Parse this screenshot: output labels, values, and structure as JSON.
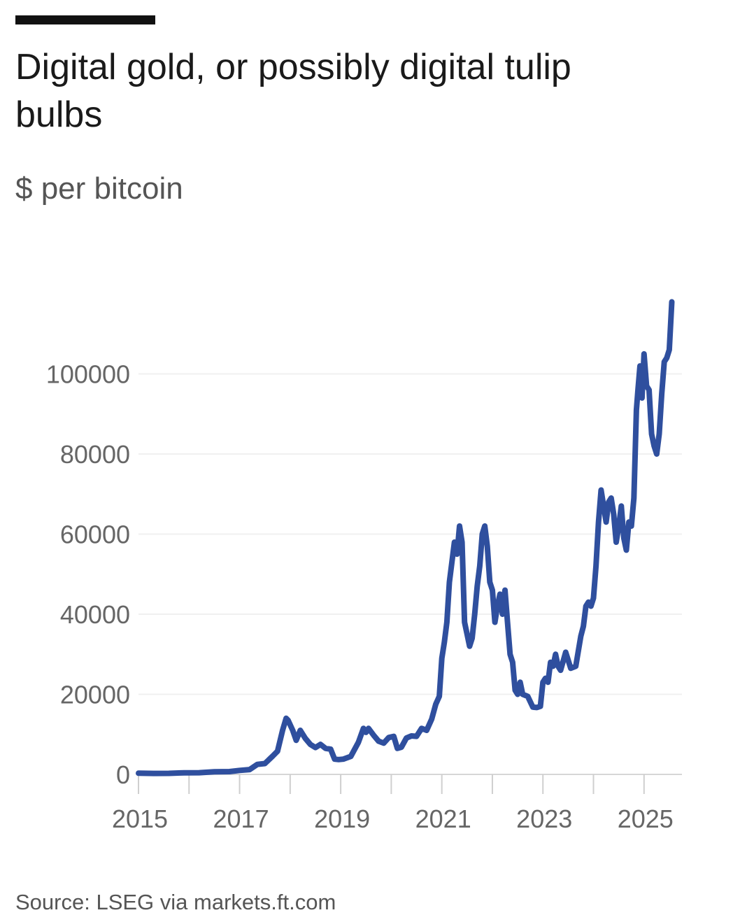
{
  "header": {
    "title": "Digital gold, or possibly digital tulip bulbs",
    "subtitle": "$ per bitcoin"
  },
  "footer": {
    "source": "Source: LSEG via markets.ft.com"
  },
  "colors": {
    "series": "#2f4f9e",
    "accent_bar": "#111111",
    "grid": "#f0f0f0"
  },
  "chart_data": {
    "type": "line",
    "title": "Digital gold, or possibly digital tulip bulbs",
    "ylabel": "$ per bitcoin",
    "xlabel": "",
    "ylim": [
      0,
      120000
    ],
    "xlim": [
      2015.0,
      2025.75
    ],
    "grid": true,
    "legend": "none",
    "yticks": [
      0,
      20000,
      40000,
      60000,
      80000,
      100000
    ],
    "ytick_labels": [
      "0",
      "20000",
      "40000",
      "60000",
      "80000",
      "100000"
    ],
    "xticks": [
      2015,
      2017,
      2019,
      2021,
      2023,
      2025
    ],
    "xtick_labels": [
      "2015",
      "2017",
      "2019",
      "2021",
      "2023",
      "2025"
    ],
    "series": [
      {
        "x": [
          2015.0,
          2015.3,
          2015.6,
          2015.9,
          2016.2,
          2016.5,
          2016.8,
          2017.0,
          2017.2,
          2017.35,
          2017.5,
          2017.65,
          2017.75,
          2017.85,
          2017.92,
          2017.96,
          2018.05,
          2018.12,
          2018.2,
          2018.3,
          2018.4,
          2018.5,
          2018.6,
          2018.7,
          2018.8,
          2018.88,
          2018.96,
          2019.05,
          2019.2,
          2019.35,
          2019.45,
          2019.5,
          2019.55,
          2019.65,
          2019.75,
          2019.85,
          2019.95,
          2020.05,
          2020.12,
          2020.2,
          2020.3,
          2020.4,
          2020.5,
          2020.6,
          2020.7,
          2020.8,
          2020.88,
          2020.95,
          2021.0,
          2021.05,
          2021.1,
          2021.15,
          2021.25,
          2021.3,
          2021.35,
          2021.4,
          2021.45,
          2021.5,
          2021.55,
          2021.6,
          2021.65,
          2021.7,
          2021.75,
          2021.8,
          2021.85,
          2021.9,
          2021.95,
          2022.0,
          2022.05,
          2022.1,
          2022.15,
          2022.2,
          2022.25,
          2022.3,
          2022.35,
          2022.4,
          2022.45,
          2022.5,
          2022.55,
          2022.6,
          2022.7,
          2022.8,
          2022.88,
          2022.95,
          2023.0,
          2023.05,
          2023.1,
          2023.15,
          2023.2,
          2023.25,
          2023.3,
          2023.35,
          2023.45,
          2023.55,
          2023.65,
          2023.75,
          2023.8,
          2023.85,
          2023.9,
          2023.95,
          2024.0,
          2024.05,
          2024.1,
          2024.15,
          2024.2,
          2024.25,
          2024.3,
          2024.35,
          2024.4,
          2024.45,
          2024.5,
          2024.55,
          2024.6,
          2024.65,
          2024.7,
          2024.75,
          2024.8,
          2024.85,
          2024.88,
          2024.92,
          2024.96,
          2025.0,
          2025.05,
          2025.1,
          2025.15,
          2025.2,
          2025.25,
          2025.3,
          2025.35,
          2025.4,
          2025.45,
          2025.5,
          2025.55
        ],
        "values": [
          300,
          250,
          260,
          400,
          420,
          650,
          700,
          1000,
          1200,
          2500,
          2700,
          4500,
          5800,
          11000,
          14000,
          13500,
          11000,
          8500,
          11000,
          9000,
          7500,
          6700,
          7500,
          6500,
          6300,
          3800,
          3700,
          3800,
          4500,
          8000,
          11500,
          10500,
          11500,
          9800,
          8300,
          7800,
          9200,
          9500,
          6500,
          6800,
          9100,
          9600,
          9500,
          11500,
          11000,
          13800,
          17500,
          19500,
          29000,
          33000,
          38000,
          48000,
          58000,
          55000,
          62000,
          58000,
          38000,
          35000,
          32000,
          34000,
          40000,
          47000,
          52000,
          60000,
          62000,
          57000,
          48000,
          46000,
          38000,
          42000,
          45000,
          40000,
          46000,
          38000,
          30000,
          28000,
          21000,
          20000,
          23000,
          20000,
          19500,
          16800,
          16700,
          17000,
          23000,
          24000,
          23000,
          28000,
          27000,
          30000,
          27000,
          26000,
          30500,
          26500,
          27000,
          34500,
          37000,
          42000,
          43000,
          42000,
          44000,
          52000,
          63000,
          71000,
          67000,
          63000,
          68000,
          69000,
          65000,
          58000,
          62000,
          67000,
          59000,
          56000,
          63000,
          62000,
          69000,
          91000,
          96000,
          102000,
          94000,
          105000,
          97000,
          96000,
          85000,
          82000,
          80000,
          85000,
          95000,
          103000,
          104000,
          106000,
          118000
        ]
      }
    ]
  }
}
